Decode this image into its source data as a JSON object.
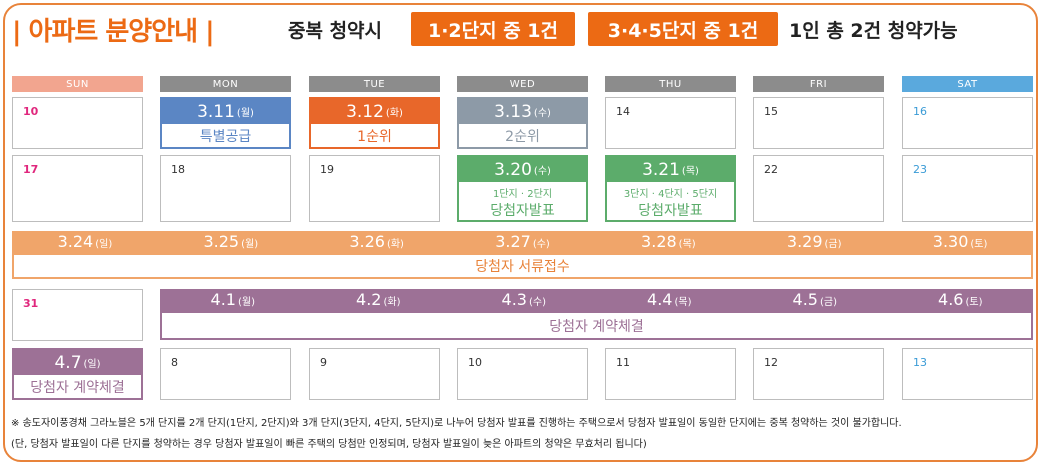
{
  "header": {
    "title": "| 아파트 분양안내 |",
    "subtitle": "중복 청약시",
    "tag1": "1·2단지 중 1건",
    "tag2": "3·4·5단지 중 1건",
    "tail": "1인 총 2건 청약가능"
  },
  "days": [
    "SUN",
    "MON",
    "TUE",
    "WED",
    "THU",
    "FRI",
    "SAT"
  ],
  "colors": {
    "sun": "#f2a58f",
    "weekday": "#8c8c8c",
    "sat": "#5aa9dd",
    "accent": "#ec6a14",
    "special": "#5b86c4",
    "first": "#e8672a",
    "second": "#8d9aa7",
    "winner": "#5cac6b",
    "docs": "#f0a56a",
    "contract": "#9d7196"
  },
  "week1": {
    "sun": "10",
    "mon": {
      "date": "3.11",
      "dow": "(월)",
      "label": "특별공급"
    },
    "tue": {
      "date": "3.12",
      "dow": "(화)",
      "label": "1순위"
    },
    "wed": {
      "date": "3.13",
      "dow": "(수)",
      "label": "2순위"
    },
    "thu": "14",
    "fri": "15",
    "sat": "16"
  },
  "week2": {
    "sun": "17",
    "mon": "18",
    "tue": "19",
    "wed": {
      "date": "3.20",
      "dow": "(수)",
      "line1": "1단지 · 2단지",
      "label": "당첨자발표"
    },
    "thu": {
      "date": "3.21",
      "dow": "(목)",
      "line1": "3단지 · 4단지 · 5단지",
      "label": "당첨자발표"
    },
    "fri": "22",
    "sat": "23"
  },
  "week3": {
    "dates": [
      [
        "3.24",
        "(일)"
      ],
      [
        "3.25",
        "(월)"
      ],
      [
        "3.26",
        "(화)"
      ],
      [
        "3.27",
        "(수)"
      ],
      [
        "3.28",
        "(목)"
      ],
      [
        "3.29",
        "(금)"
      ],
      [
        "3.30",
        "(토)"
      ]
    ],
    "label": "당첨자 서류접수"
  },
  "week4": {
    "sun": "31",
    "dates": [
      [
        "4.1",
        "(월)"
      ],
      [
        "4.2",
        "(화)"
      ],
      [
        "4.3",
        "(수)"
      ],
      [
        "4.4",
        "(목)"
      ],
      [
        "4.5",
        "(금)"
      ],
      [
        "4.6",
        "(토)"
      ]
    ],
    "label": "당첨자 계약체결"
  },
  "week5": {
    "sun": {
      "date": "4.7",
      "dow": "(일)",
      "label": "당첨자 계약체결"
    },
    "mon": "8",
    "tue": "9",
    "wed": "10",
    "thu": "11",
    "fri": "12",
    "sat": "13"
  },
  "notes": [
    "※ 송도자이풍경채 그라노블은 5개 단지를 2개 단지(1단지, 2단지)와 3개 단지(3단지, 4단지, 5단지)로 나누어 당첨자 발표를 진행하는 주택으로서 당첨자 발표일이 동일한 단지에는 중복 청약하는 것이 불가합니다.",
    "(단, 당첨자 발표일이 다른 단지를 청약하는 경우 당첨자 발표일이 빠른 주택의 당첨만 인정되며, 당첨자 발표일이 늦은 아파트의 청약은 무효처리 됩니다)"
  ]
}
